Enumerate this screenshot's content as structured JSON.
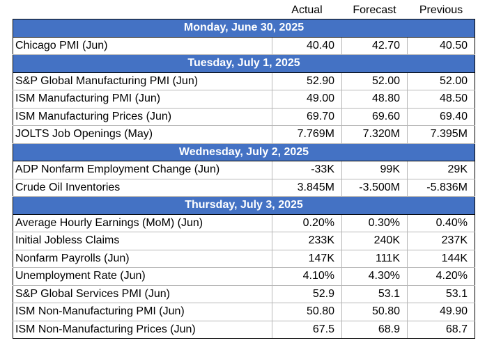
{
  "headers": {
    "actual": "Actual",
    "forecast": "Forecast",
    "previous": "Previous"
  },
  "days": [
    {
      "title": "Monday, June 30, 2025",
      "events": [
        {
          "name": "Chicago PMI (Jun)",
          "actual": "40.40",
          "forecast": "42.70",
          "previous": "40.50"
        }
      ]
    },
    {
      "title": "Tuesday, July 1, 2025",
      "events": [
        {
          "name": "S&P Global Manufacturing PMI (Jun)",
          "actual": "52.90",
          "forecast": "52.00",
          "previous": "52.00"
        },
        {
          "name": "ISM Manufacturing PMI (Jun)",
          "actual": "49.00",
          "forecast": "48.80",
          "previous": "48.50"
        },
        {
          "name": "ISM Manufacturing Prices (Jun)",
          "actual": "69.70",
          "forecast": "69.60",
          "previous": "69.40"
        },
        {
          "name": "JOLTS Job Openings (May)",
          "actual": "7.769M",
          "forecast": "7.320M",
          "previous": "7.395M"
        }
      ]
    },
    {
      "title": "Wednesday, July 2, 2025",
      "events": [
        {
          "name": "ADP Nonfarm Employment Change (Jun)",
          "actual": "-33K",
          "forecast": "99K",
          "previous": "29K"
        },
        {
          "name": "Crude Oil Inventories",
          "actual": "3.845M",
          "forecast": "-3.500M",
          "previous": "-5.836M"
        }
      ]
    },
    {
      "title": "Thursday, July 3, 2025",
      "events": [
        {
          "name": "Average Hourly Earnings (MoM) (Jun)",
          "actual": "0.20%",
          "forecast": "0.30%",
          "previous": "0.40%"
        },
        {
          "name": "Initial Jobless Claims",
          "actual": "233K",
          "forecast": "240K",
          "previous": "237K"
        },
        {
          "name": "Nonfarm Payrolls (Jun)",
          "actual": "147K",
          "forecast": "111K",
          "previous": "144K"
        },
        {
          "name": "Unemployment Rate (Jun)",
          "actual": "4.10%",
          "forecast": "4.30%",
          "previous": "4.20%"
        },
        {
          "name": "S&P Global Services PMI (Jun)",
          "actual": "52.9",
          "forecast": "53.1",
          "previous": "53.1"
        },
        {
          "name": "ISM Non-Manufacturing PMI (Jun)",
          "actual": "50.80",
          "forecast": "50.80",
          "previous": "49.90"
        },
        {
          "name": "ISM Non-Manufacturing Prices (Jun)",
          "actual": "67.5",
          "forecast": "68.9",
          "previous": "68.7"
        }
      ]
    }
  ],
  "colors": {
    "day_header_bg": "#4472c4",
    "day_header_text": "#ffffff"
  }
}
